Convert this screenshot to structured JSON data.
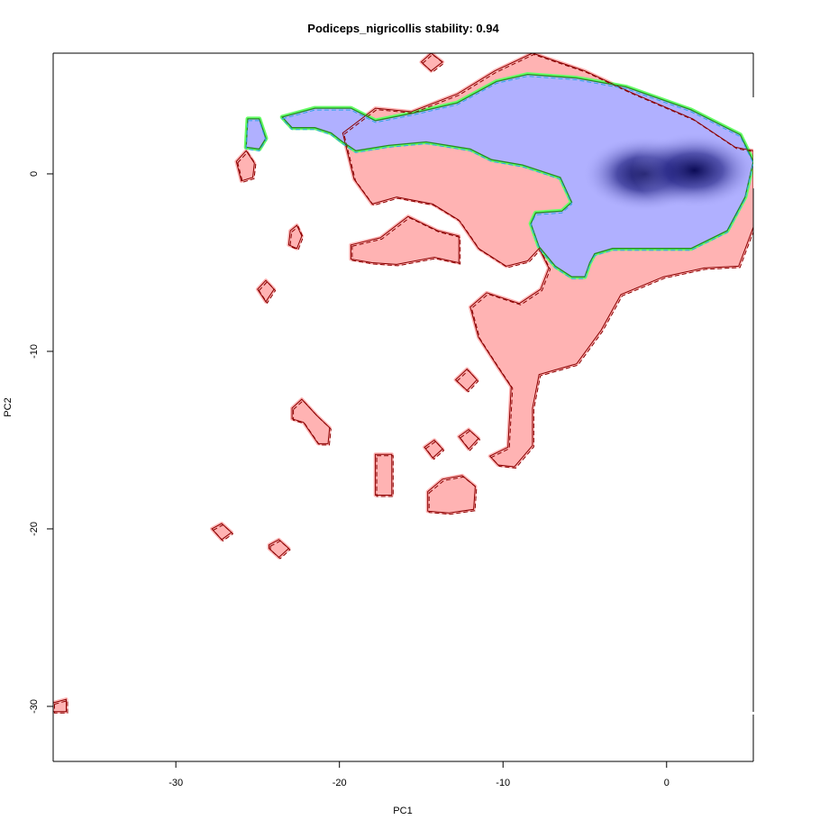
{
  "chart_data": {
    "type": "contour",
    "title": "Podiceps_nigricollis stability: 0.94",
    "xlabel": "PC1",
    "ylabel": "PC2",
    "xlim": [
      -37.5,
      5.3
    ],
    "ylim": [
      -33.1,
      6.8
    ],
    "xticks": [
      -30,
      -20,
      -10,
      0
    ],
    "yticks": [
      -30,
      -20,
      -10,
      0
    ],
    "colors": {
      "background_occupancy": "#ffb3b3",
      "species_occupancy": "#b0b0ff",
      "density_peak": "#0b0b55",
      "background_contour": "#8b0000",
      "species_contour": "#228b22",
      "overlap_fill": "#66ff66",
      "overlap_edge": "#2fa4e7"
    },
    "series": [
      {
        "name": "",
        "role": "background-environment",
        "polygons": [
          [
            [
              -19.8,
              2.3
            ],
            [
              -17.8,
              3.7
            ],
            [
              -15.6,
              3.5
            ],
            [
              -12.8,
              4.5
            ],
            [
              -10.5,
              5.8
            ],
            [
              -8.2,
              6.8
            ],
            [
              -5.0,
              5.8
            ],
            [
              -2.2,
              4.6
            ],
            [
              1.6,
              3.1
            ],
            [
              4.2,
              1.5
            ],
            [
              5.3,
              1.3
            ],
            [
              5.3,
              -3.0
            ],
            [
              4.4,
              -5.2
            ],
            [
              2.3,
              -5.3
            ],
            [
              -0.2,
              -5.8
            ],
            [
              -2.8,
              -6.8
            ],
            [
              -4.0,
              -8.8
            ],
            [
              -5.5,
              -10.7
            ],
            [
              -7.8,
              -11.3
            ],
            [
              -8.2,
              -13.2
            ],
            [
              -8.2,
              -15.3
            ],
            [
              -9.3,
              -16.5
            ],
            [
              -10.3,
              -16.4
            ],
            [
              -10.8,
              -15.9
            ],
            [
              -9.7,
              -15.4
            ],
            [
              -9.5,
              -12.0
            ],
            [
              -10.3,
              -10.9
            ],
            [
              -11.5,
              -9.2
            ],
            [
              -12.0,
              -7.5
            ],
            [
              -11.0,
              -6.7
            ],
            [
              -9.0,
              -7.3
            ],
            [
              -7.7,
              -6.5
            ],
            [
              -7.2,
              -5.3
            ],
            [
              -7.8,
              -4.2
            ],
            [
              -8.5,
              -4.9
            ],
            [
              -9.8,
              -5.2
            ],
            [
              -11.5,
              -4.2
            ],
            [
              -12.7,
              -2.6
            ],
            [
              -14.3,
              -1.7
            ],
            [
              -16.5,
              -1.3
            ],
            [
              -18.0,
              -1.7
            ],
            [
              -19.1,
              -0.3
            ],
            [
              -19.8,
              2.3
            ]
          ],
          [
            [
              -19.3,
              -4.0
            ],
            [
              -17.5,
              -3.6
            ],
            [
              -15.8,
              -2.4
            ],
            [
              -14.0,
              -3.2
            ],
            [
              -12.7,
              -3.5
            ],
            [
              -12.7,
              -5.0
            ],
            [
              -14.2,
              -4.7
            ],
            [
              -16.5,
              -5.1
            ],
            [
              -18.0,
              -5.0
            ],
            [
              -19.3,
              -4.8
            ],
            [
              -19.3,
              -4.0
            ]
          ],
          [
            [
              -15.0,
              6.3
            ],
            [
              -14.4,
              6.8
            ],
            [
              -13.7,
              6.3
            ],
            [
              -14.4,
              5.8
            ],
            [
              -15.0,
              6.3
            ]
          ],
          [
            [
              -26.3,
              0.7
            ],
            [
              -25.7,
              1.3
            ],
            [
              -25.2,
              0.6
            ],
            [
              -25.3,
              -0.2
            ],
            [
              -26.0,
              -0.4
            ],
            [
              -26.3,
              0.7
            ]
          ],
          [
            [
              -23.0,
              -3.2
            ],
            [
              -22.6,
              -2.9
            ],
            [
              -22.3,
              -3.5
            ],
            [
              -22.6,
              -4.2
            ],
            [
              -23.1,
              -4.0
            ],
            [
              -23.0,
              -3.2
            ]
          ],
          [
            [
              -25.0,
              -6.5
            ],
            [
              -24.5,
              -6.0
            ],
            [
              -24.0,
              -6.5
            ],
            [
              -24.5,
              -7.2
            ],
            [
              -25.0,
              -6.5
            ]
          ],
          [
            [
              -12.9,
              -11.6
            ],
            [
              -12.2,
              -11.0
            ],
            [
              -11.6,
              -11.6
            ],
            [
              -12.2,
              -12.2
            ],
            [
              -12.9,
              -11.6
            ]
          ],
          [
            [
              -22.9,
              -13.2
            ],
            [
              -22.3,
              -12.7
            ],
            [
              -21.4,
              -13.6
            ],
            [
              -20.6,
              -14.3
            ],
            [
              -20.7,
              -15.2
            ],
            [
              -21.3,
              -15.2
            ],
            [
              -22.2,
              -14.0
            ],
            [
              -22.9,
              -13.8
            ],
            [
              -22.9,
              -13.2
            ]
          ],
          [
            [
              -17.8,
              -15.8
            ],
            [
              -16.8,
              -15.8
            ],
            [
              -16.8,
              -18.1
            ],
            [
              -17.8,
              -18.1
            ],
            [
              -17.8,
              -15.8
            ]
          ],
          [
            [
              -14.8,
              -15.4
            ],
            [
              -14.2,
              -15.0
            ],
            [
              -13.7,
              -15.5
            ],
            [
              -14.3,
              -16.0
            ],
            [
              -14.8,
              -15.4
            ]
          ],
          [
            [
              -12.7,
              -14.8
            ],
            [
              -12.1,
              -14.4
            ],
            [
              -11.5,
              -14.9
            ],
            [
              -12.1,
              -15.5
            ],
            [
              -12.7,
              -14.8
            ]
          ],
          [
            [
              -14.6,
              -17.9
            ],
            [
              -13.7,
              -17.2
            ],
            [
              -12.5,
              -17.0
            ],
            [
              -11.7,
              -17.6
            ],
            [
              -11.8,
              -18.9
            ],
            [
              -13.3,
              -19.1
            ],
            [
              -14.6,
              -19.0
            ],
            [
              -14.6,
              -17.9
            ]
          ],
          [
            [
              -27.8,
              -20.0
            ],
            [
              -27.2,
              -19.7
            ],
            [
              -26.6,
              -20.2
            ],
            [
              -27.2,
              -20.6
            ],
            [
              -27.8,
              -20.0
            ]
          ],
          [
            [
              -24.3,
              -20.9
            ],
            [
              -23.7,
              -20.6
            ],
            [
              -23.1,
              -21.1
            ],
            [
              -23.7,
              -21.6
            ],
            [
              -24.3,
              -21.1
            ],
            [
              -24.3,
              -20.9
            ]
          ],
          [
            [
              -37.5,
              -29.8
            ],
            [
              -36.7,
              -29.6
            ],
            [
              -36.7,
              -30.3
            ],
            [
              -37.5,
              -30.3
            ],
            [
              -37.5,
              -29.8
            ]
          ]
        ]
      },
      {
        "name": "",
        "role": "species-occurrence",
        "polygons": [
          [
            [
              -23.5,
              3.2
            ],
            [
              -21.5,
              3.7
            ],
            [
              -19.3,
              3.7
            ],
            [
              -17.8,
              3.0
            ],
            [
              -15.6,
              3.4
            ],
            [
              -12.8,
              4.0
            ],
            [
              -10.4,
              5.2
            ],
            [
              -8.5,
              5.6
            ],
            [
              -5.5,
              5.4
            ],
            [
              -2.5,
              4.9
            ],
            [
              1.5,
              3.6
            ],
            [
              4.5,
              2.2
            ],
            [
              5.3,
              0.7
            ],
            [
              4.8,
              -1.3
            ],
            [
              3.7,
              -3.2
            ],
            [
              1.5,
              -4.2
            ],
            [
              -1.2,
              -4.2
            ],
            [
              -3.3,
              -4.2
            ],
            [
              -4.4,
              -4.5
            ],
            [
              -4.7,
              -5.0
            ],
            [
              -5.0,
              -5.8
            ],
            [
              -5.8,
              -5.8
            ],
            [
              -6.8,
              -5.2
            ],
            [
              -7.8,
              -4.1
            ],
            [
              -8.3,
              -2.8
            ],
            [
              -8.0,
              -2.2
            ],
            [
              -6.4,
              -2.1
            ],
            [
              -5.8,
              -1.6
            ],
            [
              -6.5,
              -0.2
            ],
            [
              -8.8,
              0.5
            ],
            [
              -10.7,
              0.8
            ],
            [
              -12.0,
              1.4
            ],
            [
              -14.7,
              1.8
            ],
            [
              -17.0,
              1.6
            ],
            [
              -19.0,
              1.3
            ],
            [
              -19.8,
              1.8
            ],
            [
              -20.5,
              2.3
            ],
            [
              -21.5,
              2.6
            ],
            [
              -22.9,
              2.6
            ],
            [
              -23.5,
              3.2
            ]
          ],
          [
            [
              -25.6,
              3.1
            ],
            [
              -24.9,
              3.1
            ],
            [
              -24.5,
              2.0
            ],
            [
              -24.9,
              1.4
            ],
            [
              -25.7,
              1.5
            ],
            [
              -25.6,
              3.1
            ]
          ]
        ]
      }
    ],
    "density_peaks": [
      {
        "x": -1.3,
        "y": 0.0,
        "level": 1.0
      },
      {
        "x": 1.7,
        "y": 0.2,
        "level": 1.0
      }
    ]
  }
}
